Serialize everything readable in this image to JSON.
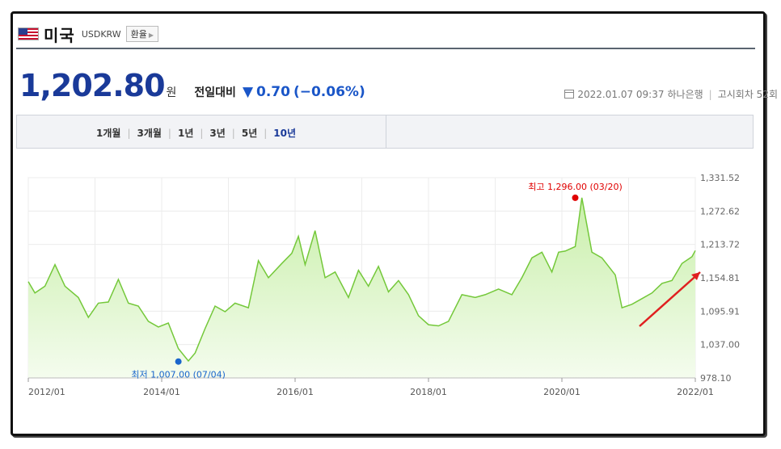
{
  "header": {
    "country": "미국",
    "code": "USDKRW",
    "fx_button": "환율",
    "icons": [
      "us-flag-icon",
      "chevron-right-icon"
    ]
  },
  "quote": {
    "price": "1,202.80",
    "unit": "원",
    "compare_label": "전일대비",
    "direction_icon": "triangle-down-icon",
    "change": "0.70",
    "change_pct": "(−0.06%)",
    "date": "2022.01.07 09:37",
    "bank": "하나은행",
    "notice": "고시회차 52회",
    "colors": {
      "price": "#1a3a99",
      "down": "#1a56c8"
    }
  },
  "tabs": [
    {
      "label": "1개월",
      "active": false
    },
    {
      "label": "3개월",
      "active": false
    },
    {
      "label": "1년",
      "active": false
    },
    {
      "label": "3년",
      "active": false
    },
    {
      "label": "5년",
      "active": false
    },
    {
      "label": "10년",
      "active": true
    }
  ],
  "chart_data": {
    "type": "area",
    "y_ticks": [
      "1,331.52",
      "1,272.62",
      "1,213.72",
      "1,154.81",
      "1,095.91",
      "1,037.00",
      "978.10"
    ],
    "ylim": [
      978.1,
      1331.52
    ],
    "x_ticks": [
      "2012/01",
      "2014/01",
      "2016/01",
      "2018/01",
      "2020/01",
      "2022/01"
    ],
    "xlim": [
      2012.0,
      2022.0
    ],
    "series": [
      {
        "x": [
          2012.0,
          2012.1,
          2012.25,
          2012.4,
          2012.55,
          2012.75,
          2012.9,
          2013.05,
          2013.2,
          2013.35,
          2013.5,
          2013.65,
          2013.8,
          2013.95,
          2014.1,
          2014.25,
          2014.4,
          2014.5,
          2014.65,
          2014.8,
          2014.95,
          2015.1,
          2015.3,
          2015.45,
          2015.6,
          2015.8,
          2015.95,
          2016.05,
          2016.15,
          2016.3,
          2016.45,
          2016.6,
          2016.8,
          2016.95,
          2017.1,
          2017.25,
          2017.4,
          2017.55,
          2017.7,
          2017.85,
          2018.0,
          2018.15,
          2018.3,
          2018.5,
          2018.7,
          2018.85,
          2019.05,
          2019.25,
          2019.4,
          2019.55,
          2019.7,
          2019.85,
          2019.95,
          2020.05,
          2020.2,
          2020.3,
          2020.45,
          2020.6,
          2020.8,
          2020.9,
          2021.05,
          2021.2,
          2021.35,
          2021.5,
          2021.65,
          2021.8,
          2021.95,
          2022.0
        ],
        "values": [
          1148,
          1128,
          1140,
          1178,
          1140,
          1120,
          1085,
          1110,
          1112,
          1152,
          1110,
          1105,
          1078,
          1068,
          1075,
          1030,
          1008,
          1022,
          1065,
          1105,
          1095,
          1110,
          1102,
          1185,
          1155,
          1180,
          1198,
          1228,
          1178,
          1238,
          1155,
          1165,
          1120,
          1168,
          1140,
          1175,
          1130,
          1150,
          1125,
          1088,
          1072,
          1070,
          1078,
          1125,
          1120,
          1125,
          1135,
          1125,
          1155,
          1190,
          1200,
          1165,
          1200,
          1202,
          1210,
          1296,
          1200,
          1190,
          1160,
          1102,
          1108,
          1118,
          1128,
          1145,
          1150,
          1180,
          1192,
          1202.8
        ]
      }
    ],
    "annotations": [
      {
        "label": "최고 1,296.00 (03/20)",
        "x": 2020.2,
        "y": 1296.0,
        "color": "#e00000"
      },
      {
        "label": "최저 1,007.00 (07/04)",
        "x": 2014.25,
        "y": 1007.0,
        "color": "#1a66cc"
      }
    ],
    "colors": {
      "line": "#74c83a",
      "fill_top": "#c9efaa",
      "fill_bottom": "#f4fcee"
    },
    "grid": true
  }
}
